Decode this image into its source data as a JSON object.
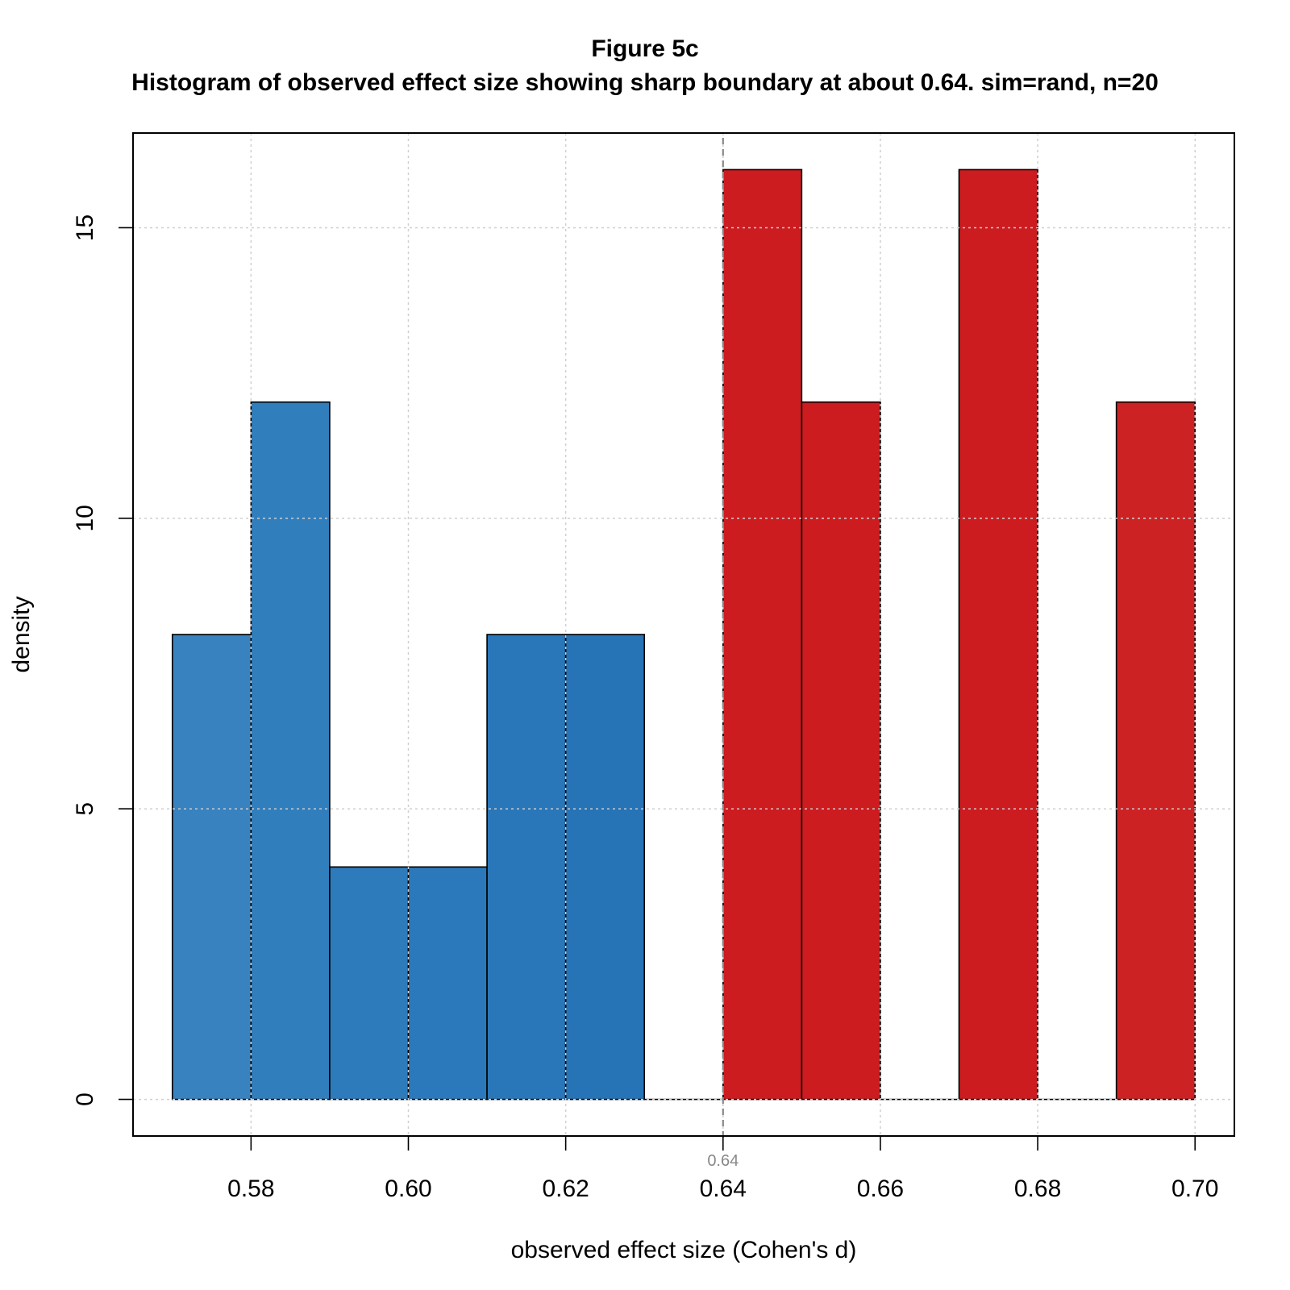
{
  "chart_data": {
    "type": "bar",
    "title": "Figure 5c",
    "subtitle": "Histogram of observed effect size showing sharp boundary at about 0.64. sim=rand, n=20",
    "xlabel": "observed effect size (Cohen's d)",
    "ylabel": "density",
    "xlim": [
      0.565,
      0.705
    ],
    "ylim": [
      -0.63,
      16.63
    ],
    "x_ticks": [
      0.58,
      0.6,
      0.62,
      0.64,
      0.66,
      0.68,
      0.7
    ],
    "x_tick_labels": [
      "0.58",
      "0.60",
      "0.62",
      "0.64",
      "0.66",
      "0.68",
      "0.70"
    ],
    "y_ticks": [
      0,
      5,
      10,
      15
    ],
    "y_tick_labels": [
      "0",
      "5",
      "10",
      "15"
    ],
    "grid": true,
    "boundary": {
      "x": 0.64,
      "label": "0.64",
      "color": "#888888"
    },
    "bins": [
      {
        "x0": 0.57,
        "x1": 0.58,
        "density": 8,
        "color": "#3782bf"
      },
      {
        "x0": 0.58,
        "x1": 0.59,
        "density": 12,
        "color": "#317ebd"
      },
      {
        "x0": 0.59,
        "x1": 0.6,
        "density": 4,
        "color": "#2e7bbb"
      },
      {
        "x0": 0.6,
        "x1": 0.61,
        "density": 4,
        "color": "#2b79ba"
      },
      {
        "x0": 0.61,
        "x1": 0.62,
        "density": 8,
        "color": "#2977b9"
      },
      {
        "x0": 0.62,
        "x1": 0.63,
        "density": 8,
        "color": "#2673b6"
      },
      {
        "x0": 0.63,
        "x1": 0.64,
        "density": 0,
        "color": "#2673b6"
      },
      {
        "x0": 0.64,
        "x1": 0.65,
        "density": 16,
        "color": "#cc1c20"
      },
      {
        "x0": 0.65,
        "x1": 0.66,
        "density": 12,
        "color": "#cc1c20"
      },
      {
        "x0": 0.66,
        "x1": 0.67,
        "density": 0,
        "color": "#cc1c20"
      },
      {
        "x0": 0.67,
        "x1": 0.68,
        "density": 16,
        "color": "#cc1c20"
      },
      {
        "x0": 0.68,
        "x1": 0.69,
        "density": 0,
        "color": "#cc1c20"
      },
      {
        "x0": 0.69,
        "x1": 0.7,
        "density": 12,
        "color": "#cc2224"
      }
    ]
  }
}
